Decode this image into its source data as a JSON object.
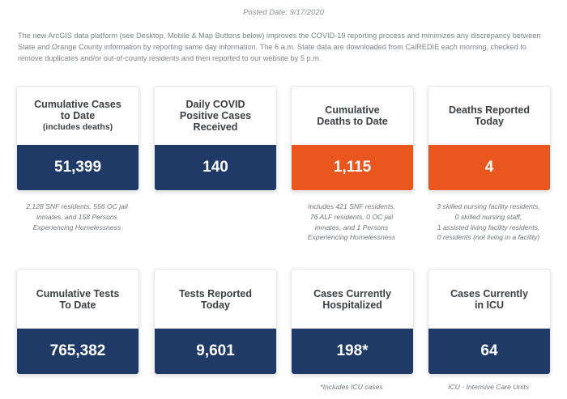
{
  "posted_date": "Posted Date: 9/17/2020",
  "intro": "The new ArcGIS data platform (see Desktop, Mobile & Map Buttons below) improves the COVID-19 reporting process and minimizes any discrepancy between State and Orange County information by reporting same day information. The 6 a.m. State data are downloaded from CalREDIE each morning, checked to remove duplicates and/or out-of-county residents and then reported to our website by 5 p.m.",
  "colors": {
    "navy": "#1f3a67",
    "orange": "#e9571f"
  },
  "cards": [
    {
      "title_line1": "Cumulative Cases",
      "title_line2": "to Date",
      "title_sub": "(includes deaths)",
      "value": "51,399",
      "note_lines": [
        "2,128 SNF residents, 556 OC jail",
        "inmates, and 158 Persons",
        "Experiencing Homelessness"
      ]
    },
    {
      "title_line1": "Daily COVID",
      "title_line2": "Positive Cases",
      "title_line3": "Received",
      "value": "140"
    },
    {
      "title_line1": "Cumulative",
      "title_line2": "Deaths to Date",
      "value": "1,115",
      "note_lines": [
        "Includes 421 SNF residents,",
        "76 ALF residents, 0 OC jail",
        "inmates, and 1 Persons",
        "Experiencing Homelessness"
      ]
    },
    {
      "title_line1": "Deaths Reported",
      "title_line2": "Today",
      "value": "4",
      "note_lines": [
        "3 skilled nursing facility residents,",
        "0 skilled nursing staff,",
        "1 assisted living facility residents,",
        "0 residents (not living in a facility)"
      ]
    },
    {
      "title_line1": "Cumulative Tests",
      "title_line2": "To Date",
      "value": "765,382"
    },
    {
      "title_line1": "Tests Reported",
      "title_line2": "Today",
      "value": "9,601"
    },
    {
      "title_line1": "Cases Currently",
      "title_line2": "Hospitalized",
      "value": "198*",
      "note_lines": [
        "*Includes ICU cases"
      ]
    },
    {
      "title_line1": "Cases Currently",
      "title_line2": "in ICU",
      "value": "64",
      "note_lines": [
        "ICU - Intensive Care Units"
      ]
    }
  ]
}
